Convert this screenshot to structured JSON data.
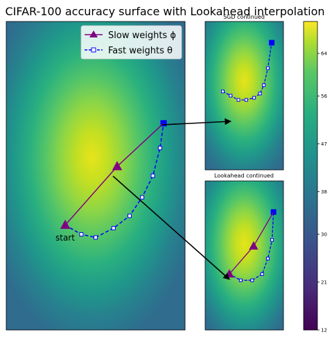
{
  "chart_data": {
    "type": "contour",
    "title": "CIFAR-100 accuracy surface with Lookahead interpolation",
    "colorbar": {
      "ticks": [
        12,
        21,
        30,
        38,
        47,
        56,
        64
      ],
      "range": [
        12,
        70
      ],
      "colormap": "viridis"
    },
    "legend": {
      "placement": "top-right",
      "entries": [
        {
          "label": "Slow weights ϕ",
          "color": "#800080",
          "marker": "triangle"
        },
        {
          "label": "Fast weights θ",
          "color": "#0000ff",
          "marker": "square"
        }
      ]
    },
    "annotations": [
      {
        "text": "start"
      }
    ],
    "panels": [
      {
        "name": "main",
        "title": "",
        "slow_weights": [
          [
            0.33,
            0.34
          ],
          [
            0.62,
            0.53
          ],
          [
            0.88,
            0.67
          ]
        ],
        "fast_weights": [
          [
            0.33,
            0.34
          ],
          [
            0.42,
            0.31
          ],
          [
            0.5,
            0.3
          ],
          [
            0.6,
            0.33
          ],
          [
            0.69,
            0.37
          ],
          [
            0.76,
            0.43
          ],
          [
            0.82,
            0.5
          ],
          [
            0.86,
            0.59
          ],
          [
            0.88,
            0.67
          ]
        ]
      },
      {
        "name": "sgd_continued",
        "title": "SGD continued",
        "fast_weights": [
          [
            0.88,
            0.67
          ],
          [
            0.96,
            0.65
          ],
          [
            1.04,
            0.63
          ],
          [
            1.12,
            0.63
          ],
          [
            1.2,
            0.64
          ],
          [
            1.26,
            0.66
          ],
          [
            1.3,
            0.7
          ],
          [
            1.34,
            0.78
          ],
          [
            1.38,
            0.9
          ]
        ]
      },
      {
        "name": "lookahead_continued",
        "title": "Lookahead continued",
        "slow_weights": [
          [
            0.62,
            0.53
          ],
          [
            0.79,
            0.62
          ],
          [
            0.93,
            0.73
          ]
        ],
        "fast_weights": [
          [
            0.62,
            0.53
          ],
          [
            0.7,
            0.51
          ],
          [
            0.78,
            0.51
          ],
          [
            0.85,
            0.53
          ],
          [
            0.89,
            0.58
          ],
          [
            0.92,
            0.64
          ],
          [
            0.93,
            0.73
          ]
        ]
      }
    ]
  }
}
